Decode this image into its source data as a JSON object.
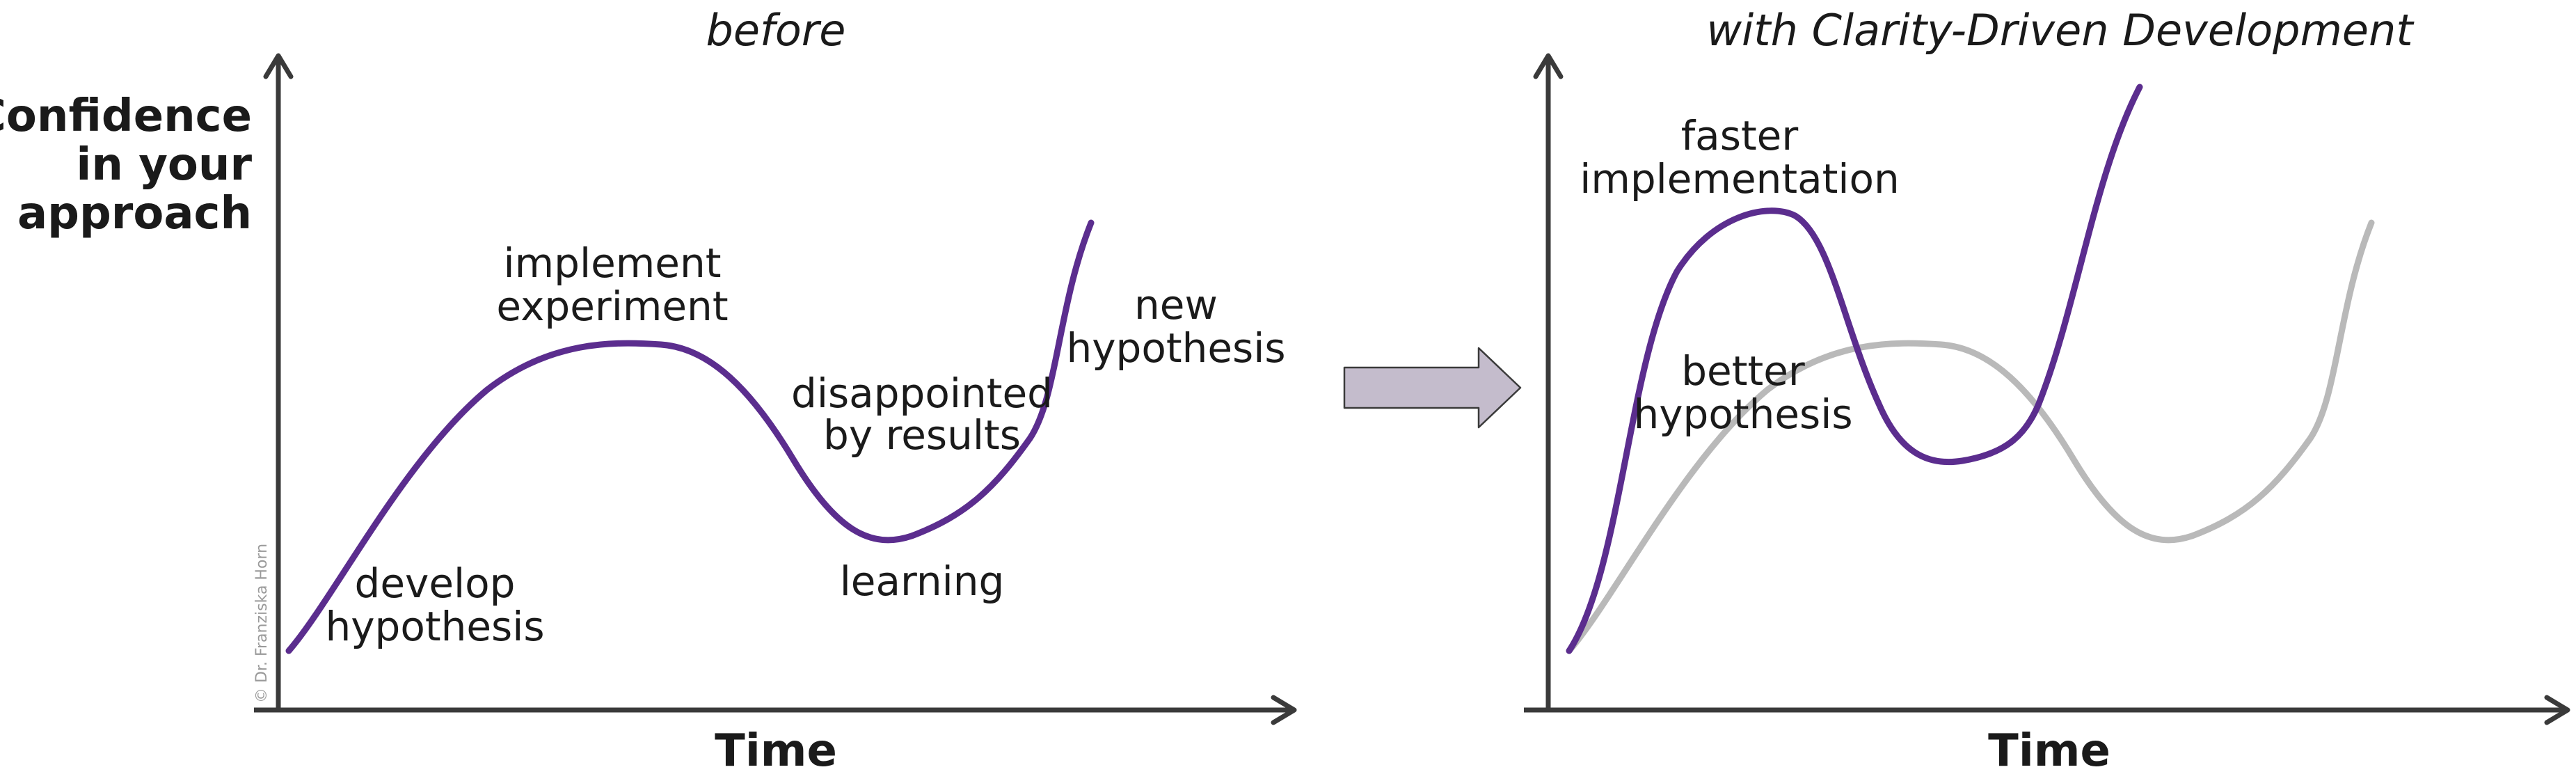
{
  "left_panel": {
    "title": "before",
    "y_axis_label": [
      "Confidence",
      "in your",
      "approach"
    ],
    "x_axis_label": "Time",
    "annotations": {
      "develop": [
        "develop",
        "hypothesis"
      ],
      "implement": [
        "implement",
        "experiment"
      ],
      "disappointed": [
        "disappointed",
        "by results"
      ],
      "learning": [
        "learning"
      ],
      "new_hypothesis": [
        "new",
        "hypothesis"
      ]
    },
    "credit": "© Dr. Franziska Horn"
  },
  "right_panel": {
    "title": "with Clarity-Driven Development",
    "x_axis_label": "Time",
    "annotations": {
      "faster": [
        "faster",
        "implementation"
      ],
      "better": [
        "better",
        "hypothesis"
      ]
    }
  },
  "colors": {
    "accent_purple": "#5b2d8e",
    "ghost_curve": "#b9b9b9",
    "axis": "#3a3a3a",
    "arrow_fill": "#c4bccc",
    "arrow_stroke": "#3a3a3a"
  }
}
